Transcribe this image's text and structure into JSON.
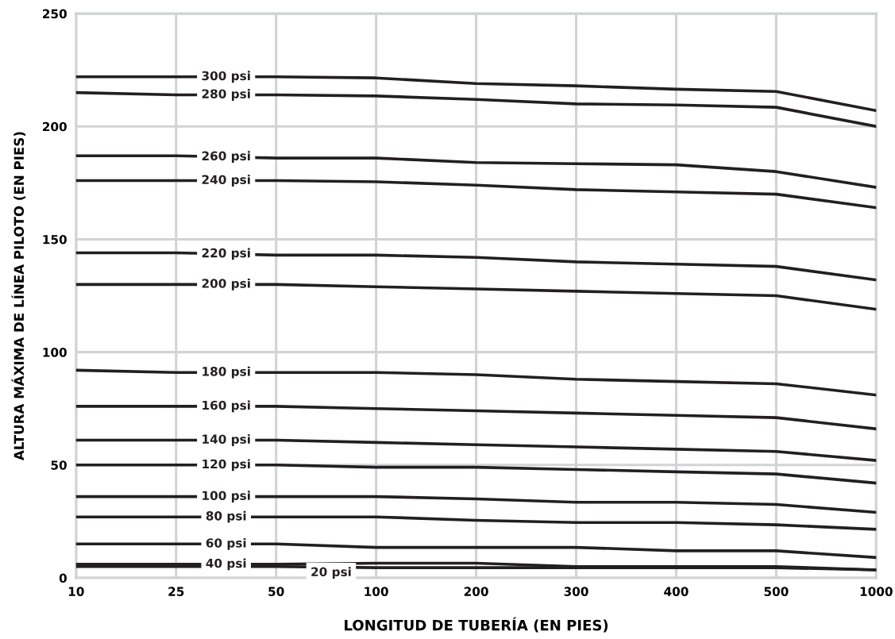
{
  "chart_data": {
    "type": "line",
    "xlabel": "LONGITUD DE TUBERÍA (EN PIES)",
    "ylabel": "ALTURA MÁXIMA DE LÍNEA PILOTO (EN PIES)",
    "categories": [
      "10",
      "25",
      "50",
      "100",
      "200",
      "300",
      "400",
      "500",
      "1000"
    ],
    "ylim": [
      0,
      250
    ],
    "yticks": [
      0,
      50,
      100,
      150,
      200,
      250
    ],
    "grid": true,
    "legend": false,
    "marker": "none",
    "line_style": "solid",
    "series": [
      {
        "name": "300 psi",
        "color": "#231f20",
        "values": [
          222,
          222,
          222,
          221.5,
          219,
          218,
          216.5,
          215.5,
          207
        ]
      },
      {
        "name": "280 psi",
        "color": "#231f20",
        "values": [
          215,
          214,
          214,
          213.5,
          212,
          210,
          209.5,
          208.5,
          200
        ]
      },
      {
        "name": "260 psi",
        "color": "#231f20",
        "values": [
          187,
          187,
          186,
          186,
          184,
          183.5,
          183,
          180,
          173
        ]
      },
      {
        "name": "240 psi",
        "color": "#231f20",
        "values": [
          176,
          176,
          176,
          175.5,
          174,
          172,
          171,
          170,
          164
        ]
      },
      {
        "name": "220 psi",
        "color": "#231f20",
        "values": [
          144,
          144,
          143,
          143,
          142,
          140,
          139,
          138,
          132
        ]
      },
      {
        "name": "200 psi",
        "color": "#231f20",
        "values": [
          130,
          130,
          130,
          129,
          128,
          127,
          126,
          125,
          119
        ]
      },
      {
        "name": "180 psi",
        "color": "#231f20",
        "values": [
          92,
          91,
          91,
          91,
          90,
          88,
          87,
          86,
          81
        ]
      },
      {
        "name": "160 psi",
        "color": "#231f20",
        "values": [
          76,
          76,
          76,
          75,
          74,
          73,
          72,
          71,
          66
        ]
      },
      {
        "name": "140 psi",
        "color": "#231f20",
        "values": [
          61,
          61,
          61,
          60,
          59,
          58,
          57,
          56,
          52
        ]
      },
      {
        "name": "120 psi",
        "color": "#231f20",
        "values": [
          50,
          50,
          50,
          49,
          49,
          48,
          47,
          46,
          42
        ]
      },
      {
        "name": "100 psi",
        "color": "#231f20",
        "values": [
          36,
          36,
          36,
          36,
          35,
          33.5,
          33.5,
          32.5,
          29
        ]
      },
      {
        "name": "80 psi",
        "color": "#231f20",
        "values": [
          27,
          27,
          27,
          27,
          25.5,
          24.5,
          24.5,
          23.5,
          21.5
        ]
      },
      {
        "name": "60 psi",
        "color": "#231f20",
        "values": [
          15,
          15,
          15,
          13.5,
          13.5,
          13.5,
          12,
          12,
          9
        ]
      },
      {
        "name": "40 psi",
        "color": "#231f20",
        "values": [
          6,
          6,
          6,
          6.5,
          6.5,
          5,
          5,
          5,
          3.5
        ]
      },
      {
        "name": "20 psi",
        "color": "#231f20",
        "values": [
          5,
          5,
          5,
          4.5,
          4.5,
          4.5,
          4.5,
          4.5,
          3.5
        ]
      }
    ]
  }
}
